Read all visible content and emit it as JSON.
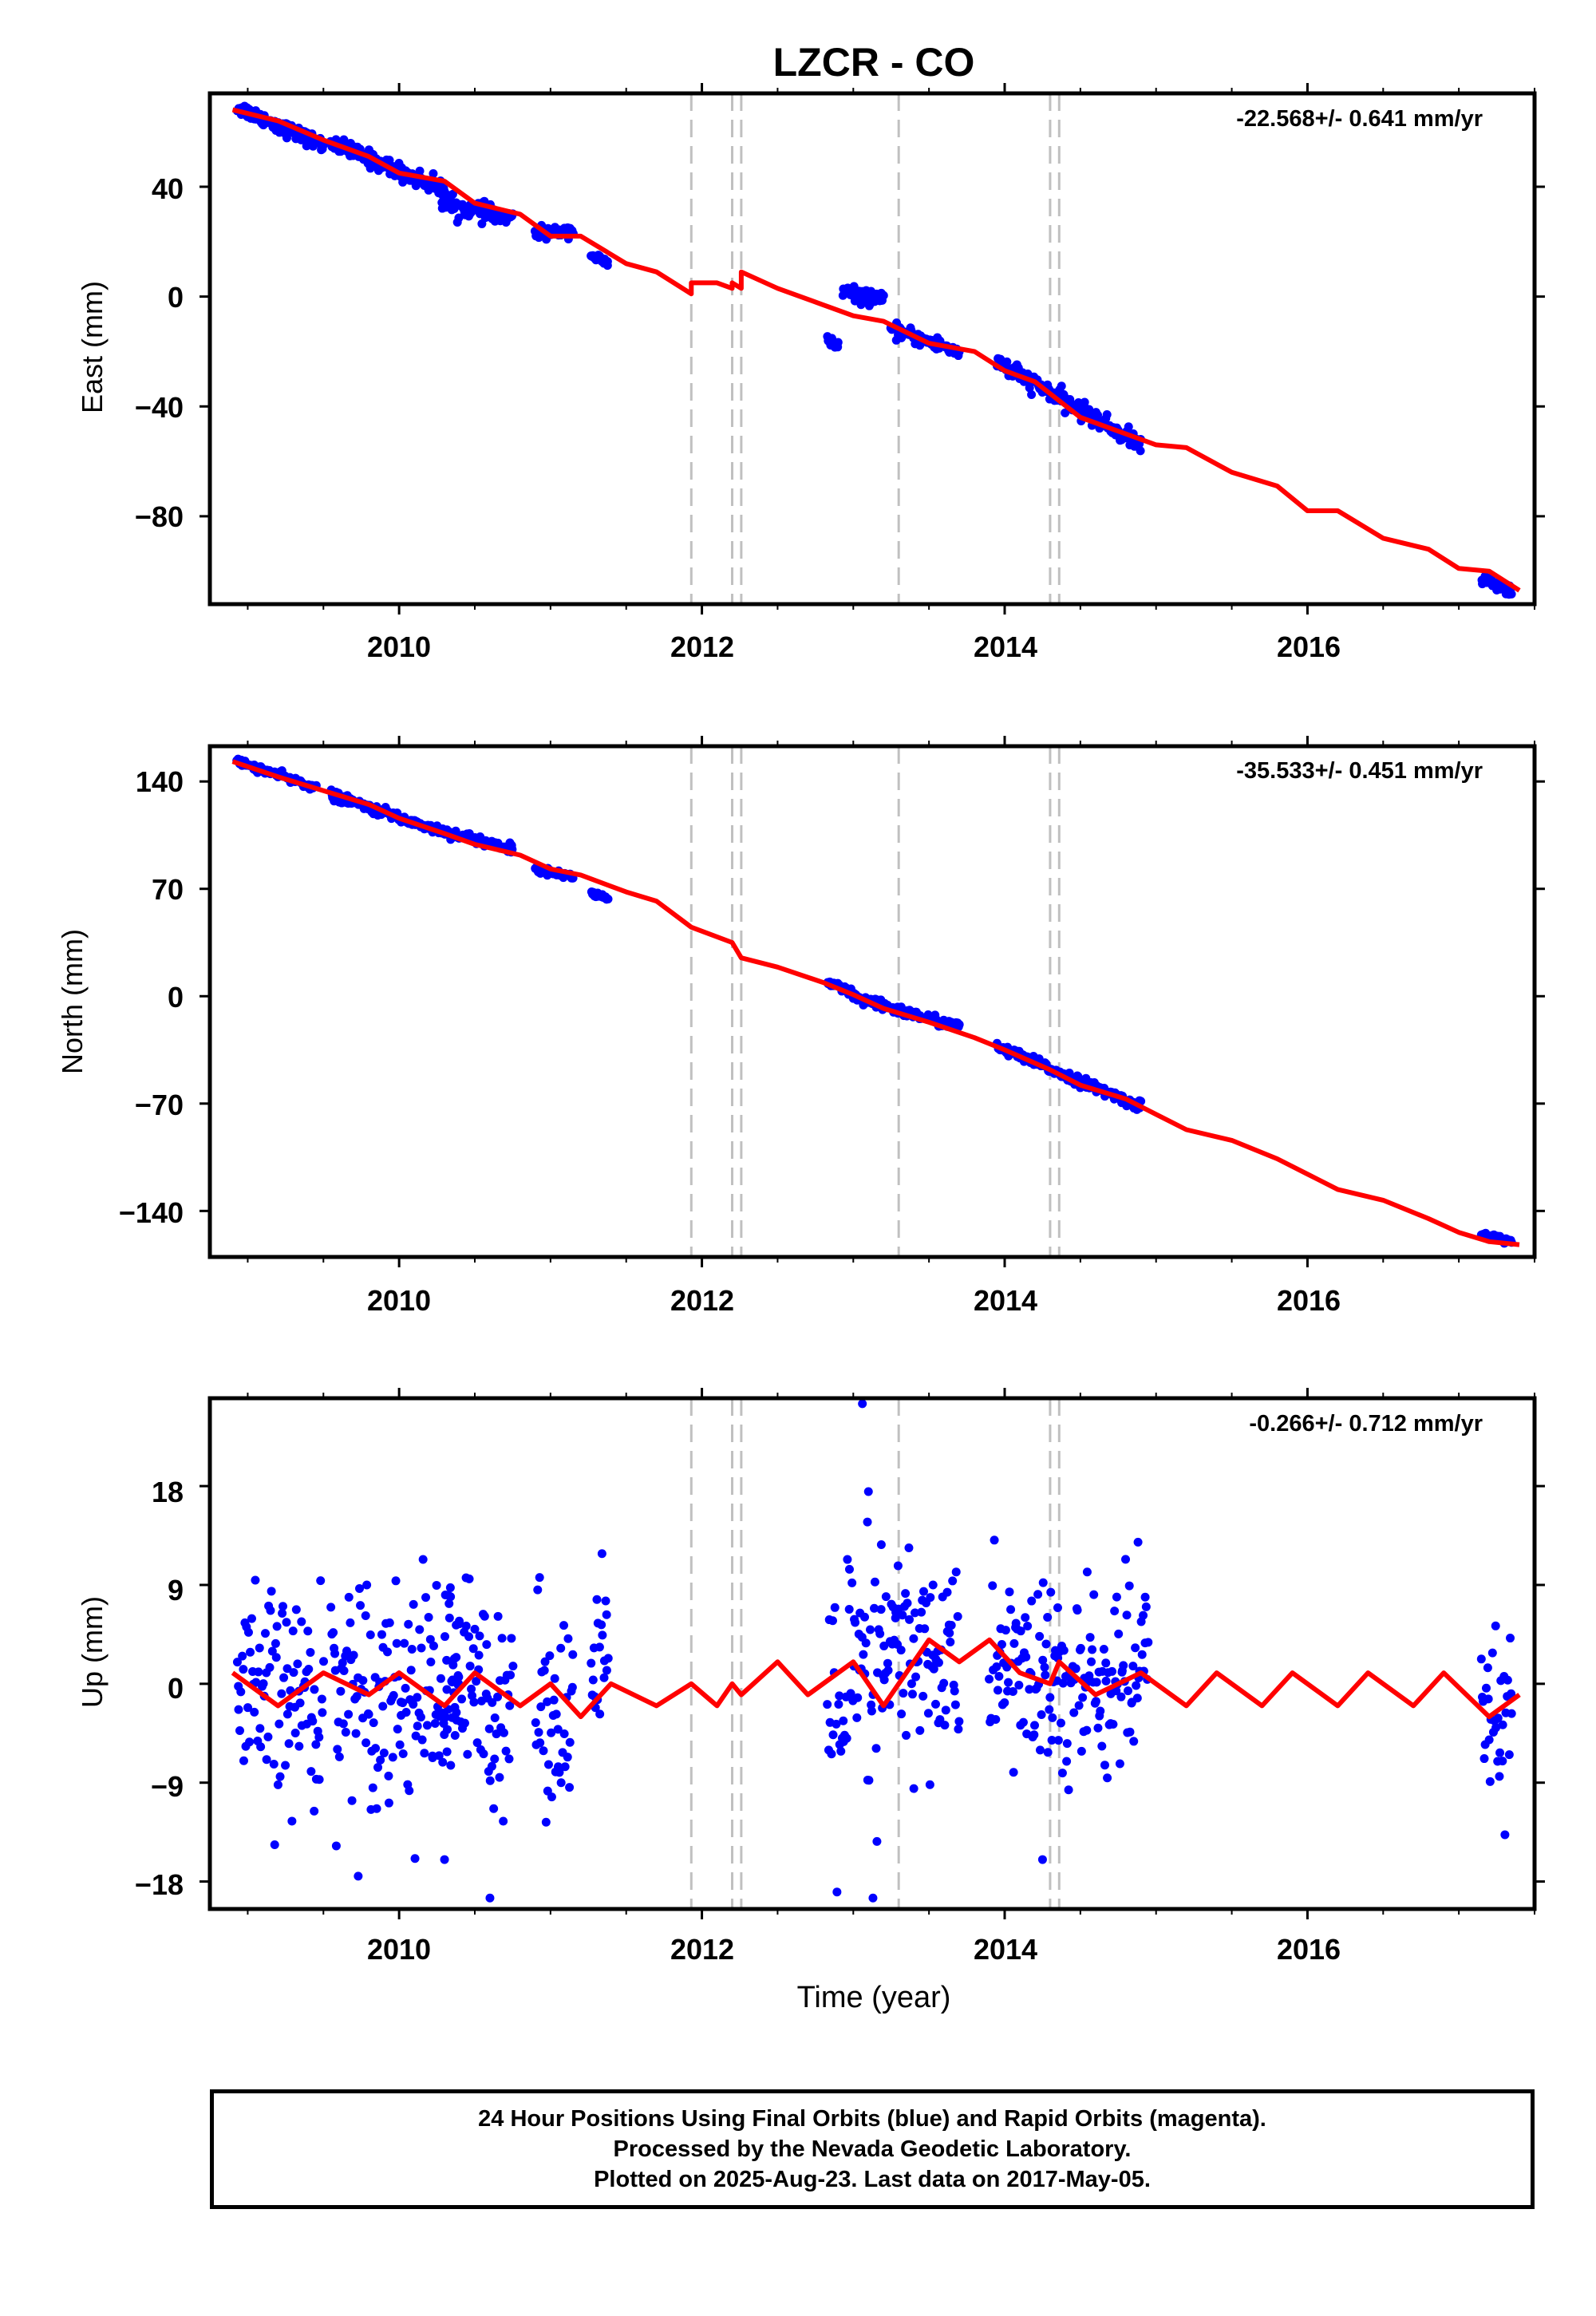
{
  "title": "LZCR - CO",
  "xlabel": "Time (year)",
  "footer": {
    "line1": "24 Hour Positions Using Final Orbits (blue) and Rapid Orbits (magenta).",
    "line2": "Processed by the Nevada Geodetic Laboratory.",
    "line3": "Plotted on 2025-Aug-23. Last data on 2017-May-05."
  },
  "colors": {
    "data": "#0000ff",
    "model": "#ff0000",
    "steps": "#c0c0c0",
    "axes": "#000000"
  },
  "chart_data": [
    {
      "type": "scatter",
      "ylabel": "East (mm)",
      "rate_label": "-22.568+/- 0.641 mm/yr",
      "xlim": [
        2008.75,
        2017.5
      ],
      "ylim": [
        -112,
        74
      ],
      "xticks": [
        2010,
        2012,
        2014,
        2016
      ],
      "yticks": [
        40,
        0,
        -40,
        -80
      ],
      "ytick_labels": [
        "40",
        "0",
        "−40",
        "−80"
      ],
      "step_lines": [
        2011.93,
        2012.2,
        2012.26,
        2013.3,
        2014.3,
        2014.36
      ],
      "data_segments": [
        {
          "x0": 2008.93,
          "x1": 2009.5,
          "y0": 69,
          "y1": 55,
          "sd": 1.3
        },
        {
          "x0": 2009.55,
          "x1": 2010.33,
          "y0": 56,
          "y1": 38,
          "sd": 1.5
        },
        {
          "x0": 2010.28,
          "x1": 2010.75,
          "y0": 34,
          "y1": 28,
          "sd": 1.6
        },
        {
          "x0": 2010.9,
          "x1": 2011.15,
          "y0": 23,
          "y1": 24,
          "sd": 1.0
        },
        {
          "x0": 2011.27,
          "x1": 2011.38,
          "y0": 15,
          "y1": 12,
          "sd": 0.8
        },
        {
          "x0": 2012.83,
          "x1": 2012.9,
          "y0": -16,
          "y1": -18,
          "sd": 1.0
        },
        {
          "x0": 2012.93,
          "x1": 2013.2,
          "y0": 2,
          "y1": -2,
          "sd": 1.3
        },
        {
          "x0": 2013.25,
          "x1": 2013.7,
          "y0": -12,
          "y1": -20,
          "sd": 1.3
        },
        {
          "x0": 2013.95,
          "x1": 2014.9,
          "y0": -24,
          "y1": -54,
          "sd": 1.6
        },
        {
          "x0": 2017.15,
          "x1": 2017.35,
          "y0": -103,
          "y1": -107,
          "sd": 1.0
        }
      ],
      "model": {
        "x": [
          2008.9,
          2009.2,
          2009.5,
          2009.8,
          2010.0,
          2010.3,
          2010.5,
          2010.8,
          2011.0,
          2011.2,
          2011.5,
          2011.7,
          2011.93,
          2011.93,
          2012.1,
          2012.2,
          2012.2,
          2012.26,
          2012.26,
          2012.5,
          2012.8,
          2013.0,
          2013.2,
          2013.5,
          2013.8,
          2014.0,
          2014.2,
          2014.5,
          2014.8,
          2015.0,
          2015.2,
          2015.5,
          2015.8,
          2016.0,
          2016.2,
          2016.5,
          2016.8,
          2017.0,
          2017.2,
          2017.4
        ],
        "y": [
          68,
          64,
          57,
          51,
          45,
          42,
          34,
          30,
          22,
          22,
          12,
          9,
          1,
          5,
          5,
          3,
          5,
          3,
          9,
          3,
          -3,
          -7,
          -9,
          -17,
          -20,
          -27,
          -31,
          -44,
          -50,
          -54,
          -55,
          -64,
          -69,
          -78,
          -78,
          -88,
          -92,
          -99,
          -100,
          -107
        ]
      }
    },
    {
      "type": "scatter",
      "ylabel": "North (mm)",
      "rate_label": "-35.533+/- 0.451 mm/yr",
      "xlim": [
        2008.75,
        2017.5
      ],
      "ylim": [
        -170,
        163
      ],
      "xticks": [
        2010,
        2012,
        2014,
        2016
      ],
      "yticks": [
        140,
        70,
        0,
        -70,
        -140
      ],
      "ytick_labels": [
        "140",
        "70",
        "0",
        "−70",
        "−140"
      ],
      "step_lines": [
        2011.93,
        2012.2,
        2012.26,
        2013.3,
        2014.3,
        2014.36
      ],
      "data_segments": [
        {
          "x0": 2008.93,
          "x1": 2009.45,
          "y0": 153,
          "y1": 136,
          "sd": 1.2
        },
        {
          "x0": 2009.55,
          "x1": 2010.2,
          "y0": 131,
          "y1": 110,
          "sd": 1.5
        },
        {
          "x0": 2010.2,
          "x1": 2010.75,
          "y0": 110,
          "y1": 96,
          "sd": 1.5
        },
        {
          "x0": 2010.9,
          "x1": 2011.15,
          "y0": 83,
          "y1": 78,
          "sd": 1.0
        },
        {
          "x0": 2011.27,
          "x1": 2011.38,
          "y0": 67,
          "y1": 64,
          "sd": 1.0
        },
        {
          "x0": 2012.83,
          "x1": 2013.0,
          "y0": 8,
          "y1": 2,
          "sd": 1.5
        },
        {
          "x0": 2013.0,
          "x1": 2013.7,
          "y0": -1,
          "y1": -20,
          "sd": 1.6
        },
        {
          "x0": 2013.95,
          "x1": 2014.9,
          "y0": -33,
          "y1": -72,
          "sd": 1.6
        },
        {
          "x0": 2017.15,
          "x1": 2017.35,
          "y0": -155,
          "y1": -160,
          "sd": 1.0
        }
      ],
      "model": {
        "x": [
          2008.9,
          2009.2,
          2009.5,
          2009.8,
          2010.0,
          2010.3,
          2010.5,
          2010.8,
          2011.0,
          2011.2,
          2011.5,
          2011.7,
          2011.93,
          2012.2,
          2012.26,
          2012.5,
          2012.8,
          2013.0,
          2013.2,
          2013.5,
          2013.8,
          2014.0,
          2014.3,
          2014.5,
          2014.8,
          2015.0,
          2015.2,
          2015.5,
          2015.8,
          2016.0,
          2016.2,
          2016.5,
          2016.8,
          2017.0,
          2017.2,
          2017.4
        ],
        "y": [
          153,
          143,
          134,
          125,
          116,
          106,
          99,
          92,
          83,
          79,
          68,
          62,
          45,
          35,
          25,
          19,
          9,
          1,
          -8,
          -17,
          -27,
          -35,
          -48,
          -58,
          -67,
          -77,
          -87,
          -94,
          -106,
          -116,
          -126,
          -133,
          -145,
          -154,
          -160,
          -162
        ]
      }
    },
    {
      "type": "scatter",
      "ylabel": "Up (mm)",
      "rate_label": "-0.266+/- 0.712 mm/yr",
      "xlim": [
        2008.75,
        2017.5
      ],
      "ylim": [
        -20.5,
        26
      ],
      "xticks": [
        2010,
        2012,
        2014,
        2016
      ],
      "yticks": [
        18,
        9,
        0,
        -9,
        -18
      ],
      "ytick_labels": [
        "18",
        "9",
        "0",
        "−9",
        "−18"
      ],
      "step_lines": [
        2011.93,
        2012.2,
        2012.26,
        2013.3,
        2014.3,
        2014.36
      ],
      "data_segments": [
        {
          "x0": 2008.93,
          "x1": 2009.5,
          "y0": -2,
          "y1": -1,
          "sd": 5.0
        },
        {
          "x0": 2009.55,
          "x1": 2010.4,
          "y0": 0,
          "y1": -1,
          "sd": 5.2
        },
        {
          "x0": 2010.3,
          "x1": 2010.75,
          "y0": 0,
          "y1": -1,
          "sd": 5.0
        },
        {
          "x0": 2010.9,
          "x1": 2011.15,
          "y0": -2,
          "y1": -2,
          "sd": 4.5
        },
        {
          "x0": 2011.27,
          "x1": 2011.38,
          "y0": 1,
          "y1": 1,
          "sd": 4.0
        },
        {
          "x0": 2012.83,
          "x1": 2013.2,
          "y0": -2,
          "y1": 0,
          "sd": 7.0
        },
        {
          "x0": 2013.2,
          "x1": 2013.7,
          "y0": 3,
          "y1": 2,
          "sd": 5.0
        },
        {
          "x0": 2013.9,
          "x1": 2014.35,
          "y0": 2,
          "y1": 0,
          "sd": 4.5
        },
        {
          "x0": 2014.35,
          "x1": 2014.95,
          "y0": -1,
          "y1": 1,
          "sd": 5.0
        },
        {
          "x0": 2017.15,
          "x1": 2017.35,
          "y0": -4,
          "y1": -3,
          "sd": 3.5
        }
      ],
      "outliers": [
        {
          "x": 2013.06,
          "y": 25.5
        },
        {
          "x": 2013.1,
          "y": 17.5
        },
        {
          "x": 2013.13,
          "y": -19.5
        },
        {
          "x": 2010.6,
          "y": -19.5
        },
        {
          "x": 2010.3,
          "y": -16
        },
        {
          "x": 2014.25,
          "y": -16
        }
      ],
      "model": {
        "x": [
          2008.9,
          2009.2,
          2009.5,
          2009.8,
          2010.0,
          2010.3,
          2010.5,
          2010.8,
          2011.0,
          2011.2,
          2011.4,
          2011.7,
          2011.93,
          2012.1,
          2012.2,
          2012.26,
          2012.5,
          2012.7,
          2013.0,
          2013.2,
          2013.5,
          2013.7,
          2013.9,
          2014.1,
          2014.3,
          2014.36,
          2014.6,
          2014.9,
          2015.2,
          2015.4,
          2015.7,
          2015.9,
          2016.2,
          2016.4,
          2016.7,
          2016.9,
          2017.2,
          2017.4
        ],
        "y": [
          1,
          -2,
          1,
          -1,
          1,
          -2,
          1,
          -2,
          0,
          -3,
          0,
          -2,
          0,
          -2,
          0,
          -1,
          2,
          -1,
          2,
          -2,
          4,
          2,
          4,
          1,
          0,
          2,
          -1,
          1,
          -2,
          1,
          -2,
          1,
          -2,
          1,
          -2,
          1,
          -3,
          -1
        ]
      }
    }
  ]
}
